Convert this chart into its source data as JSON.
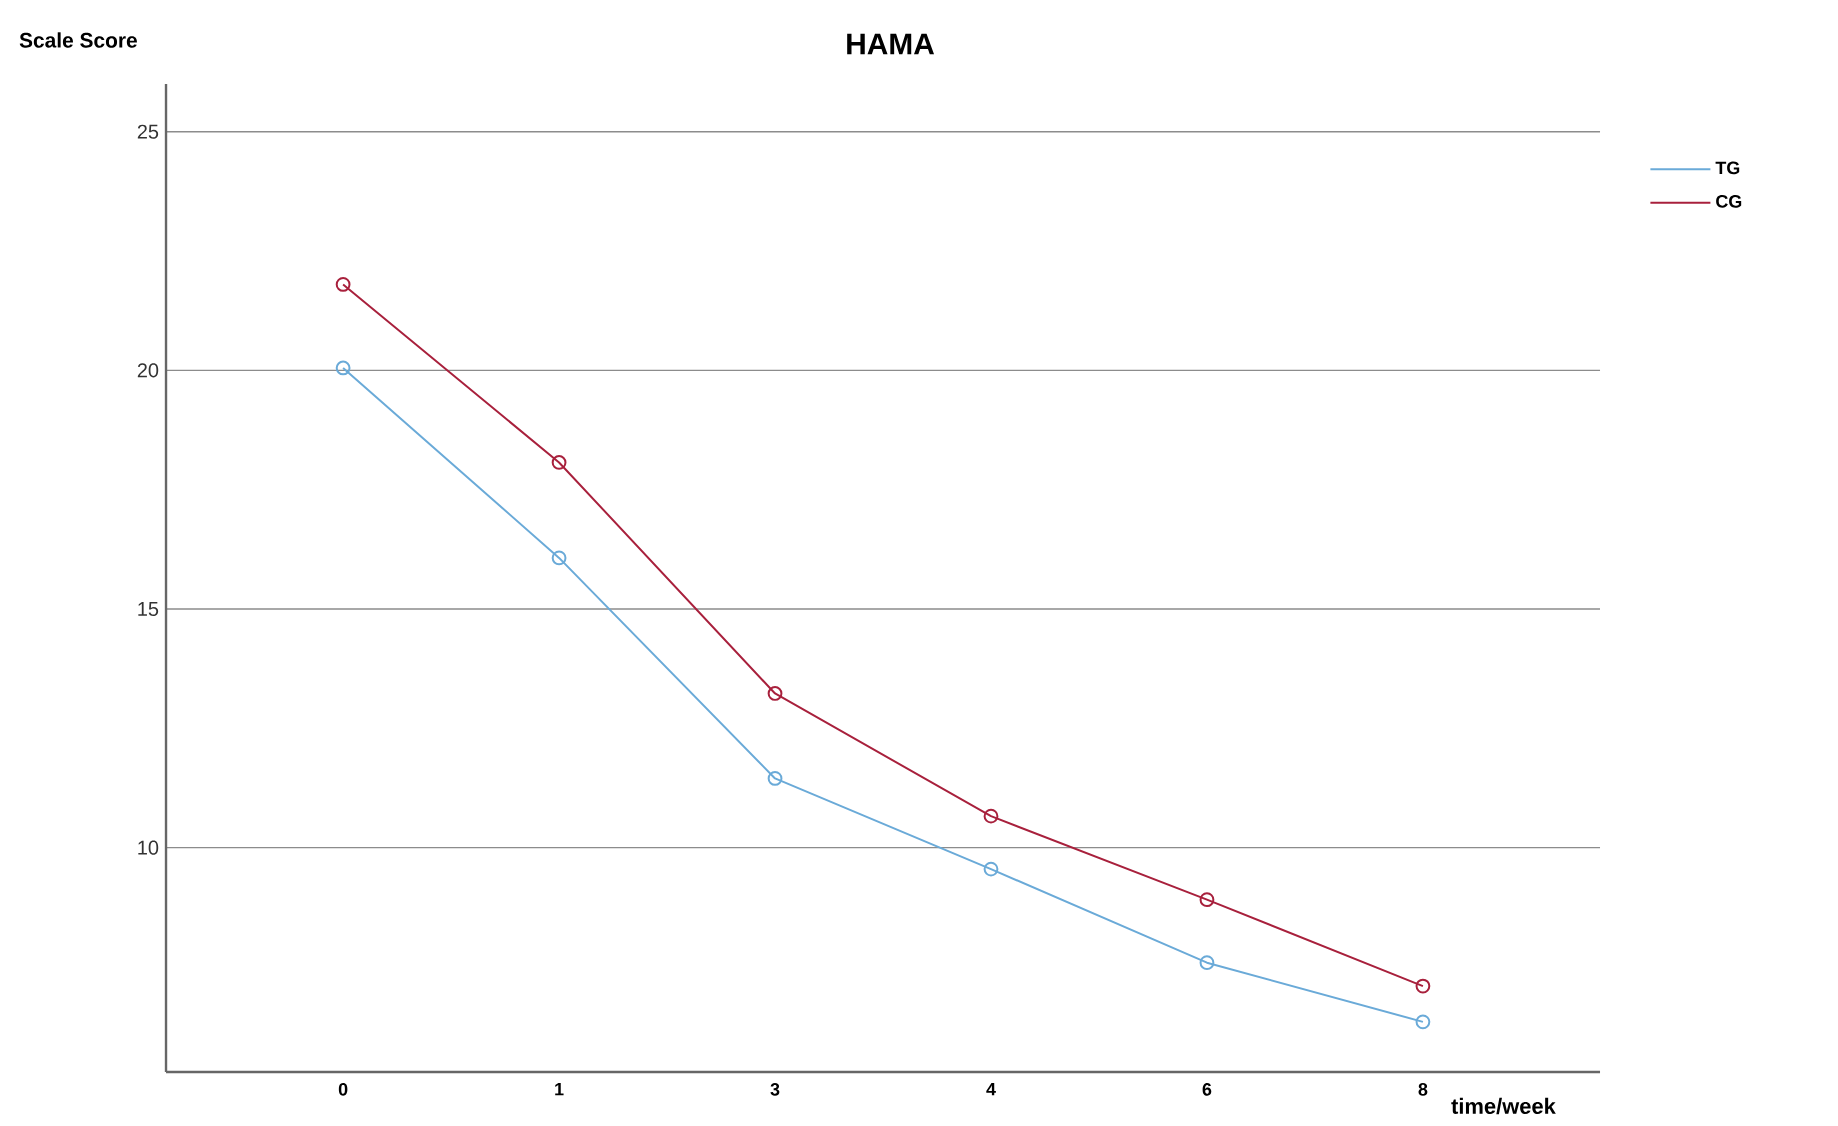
{
  "chart_data": {
    "type": "line",
    "title": "HAMA",
    "xlabel": "time/week",
    "ylabel": "Scale Score",
    "categories": [
      "0",
      "1",
      "3",
      "4",
      "6",
      "8"
    ],
    "series": [
      {
        "name": "TG",
        "color": "#6aaad8",
        "values": [
          20.05,
          16.07,
          11.45,
          9.55,
          7.59,
          6.35
        ]
      },
      {
        "name": "CG",
        "color": "#a8203c",
        "values": [
          21.8,
          18.07,
          13.23,
          10.66,
          8.91,
          7.1
        ]
      }
    ],
    "ylim": [
      5.3,
      26
    ],
    "yticks": [
      10,
      15,
      20,
      25
    ],
    "grid": "y",
    "legend": "top right",
    "marker": "circle",
    "line_style": "solid"
  }
}
